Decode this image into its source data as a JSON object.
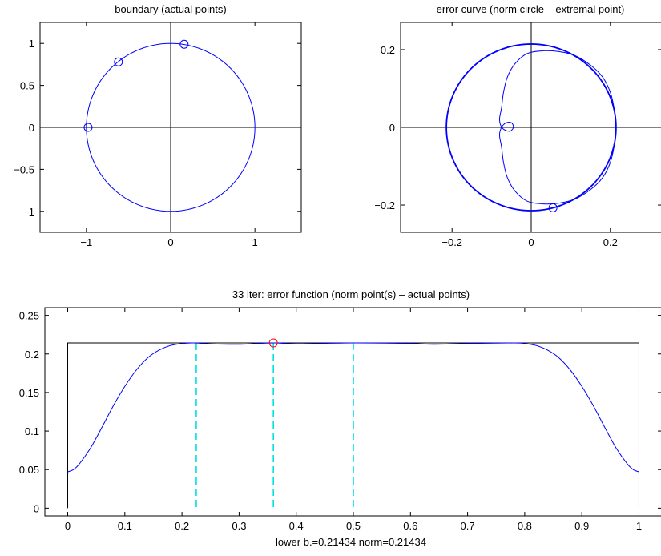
{
  "colors": {
    "curve": "#0000ff",
    "axis": "#000000",
    "marker_red": "#ff0000",
    "dashed": "#00e0e0",
    "background": "#ffffff"
  },
  "chart_data": [
    {
      "id": "boundary",
      "type": "line",
      "title": "boundary (actual points)",
      "xlabel": "",
      "ylabel": "",
      "xlim": [
        -1.55,
        1.55
      ],
      "ylim": [
        -1.25,
        1.25
      ],
      "aspect_equal": true,
      "grid": false,
      "x_ticks": [
        -1,
        0,
        1
      ],
      "x_tick_labels": [
        "−1",
        "0",
        "1"
      ],
      "y_ticks": [
        1,
        0.5,
        0,
        -0.5,
        -1
      ],
      "y_tick_labels": [
        "1",
        "0.5",
        "0",
        "−0.5",
        "−1"
      ],
      "series": [
        {
          "kind": "unit-circle",
          "radius": 1
        }
      ],
      "markers": [
        {
          "x": 0.16,
          "y": 0.99
        },
        {
          "x": -0.62,
          "y": 0.78
        },
        {
          "x": -0.98,
          "y": 0.0
        }
      ]
    },
    {
      "id": "error-curve",
      "type": "line",
      "title": "error curve (norm circle – extremal point)",
      "xlabel": "",
      "ylabel": "",
      "xlim": [
        -0.33,
        0.33
      ],
      "ylim": [
        -0.27,
        0.27
      ],
      "aspect_equal": true,
      "grid": false,
      "x_ticks": [
        -0.2,
        0,
        0.2
      ],
      "x_tick_labels": [
        "−0.2",
        "0",
        "0.2"
      ],
      "y_ticks": [
        0.2,
        0,
        -0.2
      ],
      "y_tick_labels": [
        "0.2",
        "0",
        "−0.2"
      ],
      "series": [
        {
          "kind": "norm-circle",
          "radius": 0.21434
        },
        {
          "kind": "error-curve-with-inner-loop",
          "points": [
            [
              0.214,
              0.0
            ],
            [
              0.21,
              0.045
            ],
            [
              0.2,
              0.09
            ],
            [
              0.18,
              0.13
            ],
            [
              0.15,
              0.16
            ],
            [
              0.11,
              0.185
            ],
            [
              0.07,
              0.195
            ],
            [
              0.03,
              0.197
            ],
            [
              -0.01,
              0.19
            ],
            [
              -0.04,
              0.165
            ],
            [
              -0.06,
              0.13
            ],
            [
              -0.07,
              0.09
            ],
            [
              -0.075,
              0.05
            ],
            [
              -0.08,
              0.02
            ],
            [
              -0.073,
              -0.002
            ],
            [
              -0.055,
              -0.01
            ],
            [
              -0.045,
              0.0
            ],
            [
              -0.05,
              0.012
            ],
            [
              -0.063,
              0.012
            ],
            [
              -0.075,
              0.0
            ],
            [
              -0.08,
              -0.02
            ],
            [
              -0.075,
              -0.05
            ],
            [
              -0.07,
              -0.09
            ],
            [
              -0.06,
              -0.13
            ],
            [
              -0.04,
              -0.165
            ],
            [
              -0.01,
              -0.19
            ],
            [
              0.03,
              -0.197
            ],
            [
              0.07,
              -0.195
            ],
            [
              0.11,
              -0.185
            ],
            [
              0.15,
              -0.16
            ],
            [
              0.18,
              -0.13
            ],
            [
              0.2,
              -0.09
            ],
            [
              0.21,
              -0.045
            ],
            [
              0.214,
              0.0
            ]
          ]
        }
      ],
      "markers": [
        {
          "x": 0.055,
          "y": -0.207
        }
      ]
    },
    {
      "id": "error-function",
      "type": "line",
      "title": "33 iter: error function (norm point(s) – actual points)",
      "xlabel": "lower b.=0.21434  norm=0.21434",
      "ylabel": "",
      "xlim": [
        -0.04,
        1.04
      ],
      "ylim": [
        -0.01,
        0.26
      ],
      "grid": false,
      "x_ticks": [
        0,
        0.1,
        0.2,
        0.3,
        0.4,
        0.5,
        0.6,
        0.7,
        0.8,
        0.9,
        1
      ],
      "x_tick_labels": [
        "0",
        "0.1",
        "0.2",
        "0.3",
        "0.4",
        "0.5",
        "0.6",
        "0.7",
        "0.8",
        "0.9",
        "1"
      ],
      "y_ticks": [
        0,
        0.05,
        0.1,
        0.15,
        0.2,
        0.25
      ],
      "y_tick_labels": [
        "0",
        "0.05",
        "0.1",
        "0.15",
        "0.2",
        "0.25"
      ],
      "norm_value": 0.21434,
      "series": [
        {
          "kind": "error-function",
          "x": [
            0,
            0.01,
            0.02,
            0.04,
            0.06,
            0.08,
            0.1,
            0.12,
            0.14,
            0.16,
            0.18,
            0.2,
            0.22,
            0.25,
            0.3,
            0.36,
            0.4,
            0.5,
            0.6,
            0.64,
            0.7,
            0.78,
            0.8,
            0.82,
            0.84,
            0.86,
            0.88,
            0.9,
            0.92,
            0.94,
            0.96,
            0.98,
            0.99,
            1.0
          ],
          "y": [
            0.047,
            0.05,
            0.057,
            0.078,
            0.105,
            0.133,
            0.158,
            0.179,
            0.195,
            0.205,
            0.211,
            0.2135,
            0.2143,
            0.213,
            0.2125,
            0.2143,
            0.213,
            0.2143,
            0.2135,
            0.2125,
            0.2135,
            0.2143,
            0.2135,
            0.211,
            0.205,
            0.195,
            0.179,
            0.158,
            0.133,
            0.105,
            0.078,
            0.057,
            0.05,
            0.047
          ]
        }
      ],
      "dashed_lines_x": [
        0.225,
        0.36,
        0.5
      ],
      "markers": [
        {
          "x": 0.36,
          "y": 0.2143
        }
      ]
    }
  ]
}
